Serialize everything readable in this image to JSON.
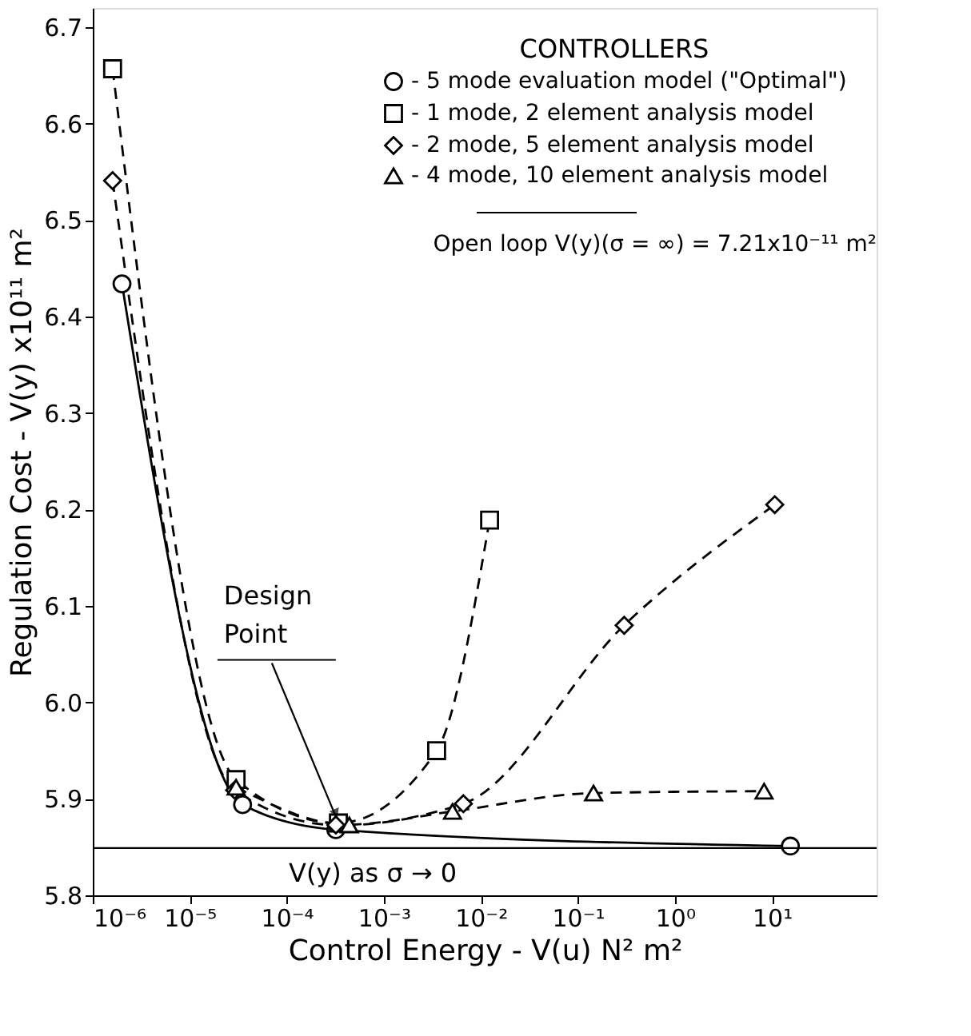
{
  "chart_data": {
    "type": "line",
    "xlabel": "Control Energy - V(u) N² m²",
    "ylabel": "Regulation Cost - V(y) x10¹¹ m²",
    "legend_title": "CONTROLLERS",
    "legend": "top right",
    "log": "x",
    "grid": false,
    "xlim": [
      1e-06,
      120
    ],
    "ylim": [
      5.8,
      6.72
    ],
    "xticks": [
      {
        "value": 1e-06,
        "label": "10⁻⁶"
      },
      {
        "value": 1e-05,
        "label": "10⁻⁵"
      },
      {
        "value": 0.0001,
        "label": "10⁻⁴"
      },
      {
        "value": 0.001,
        "label": "10⁻³"
      },
      {
        "value": 0.01,
        "label": "10⁻²"
      },
      {
        "value": 0.1,
        "label": "10⁻¹"
      },
      {
        "value": 1,
        "label": "10⁰"
      },
      {
        "value": 10,
        "label": "10¹"
      }
    ],
    "yticks": [
      5.8,
      5.9,
      {
        "value": 6.0,
        "label": "6.0"
      },
      6.1,
      6.2,
      6.3,
      6.4,
      6.5,
      6.6,
      6.7
    ],
    "series": [
      {
        "name": "- 5 mode evaluation model (\"Optimal\")",
        "color": "#000000",
        "marker": "circle",
        "line_style": "solid",
        "x": [
          2e-06,
          3.5e-05,
          0.00032,
          15.5
        ],
        "values": [
          6.434,
          5.894,
          5.868,
          5.851
        ]
      },
      {
        "name": "- 1 mode, 2 element analysis model",
        "color": "#000000",
        "marker": "square",
        "line_style": "dashed",
        "x": [
          1.6e-06,
          3e-05,
          0.00034,
          0.0035,
          0.0123
        ],
        "values": [
          6.657,
          5.92,
          5.875,
          5.95,
          6.189
        ]
      },
      {
        "name": "- 2 mode, 5 element analysis model",
        "color": "#000000",
        "marker": "diamond",
        "line_style": "dashed",
        "x": [
          1.6e-06,
          2.9e-05,
          0.00032,
          0.0066,
          0.3,
          10.7
        ],
        "values": [
          6.541,
          5.909,
          5.873,
          5.895,
          6.08,
          6.205
        ]
      },
      {
        "name": "- 4 mode, 10 element analysis model",
        "color": "#000000",
        "marker": "triangle",
        "line_style": "dashed",
        "x": [
          3e-05,
          0.00044,
          0.0051,
          0.145,
          8.3
        ],
        "values": [
          5.912,
          5.873,
          5.887,
          5.906,
          5.908
        ]
      }
    ],
    "ref_lines": [
      {
        "axis": "y",
        "value": 5.849,
        "label": "V(y) as σ → 0",
        "color": "#000000",
        "line_style": "solid"
      }
    ],
    "annotations": [
      {
        "text": "Design Point",
        "x": 0.00032,
        "y": 5.875
      },
      "Open loop V(y)(σ = ∞) = 7.21x10⁻¹¹ m²"
    ]
  }
}
